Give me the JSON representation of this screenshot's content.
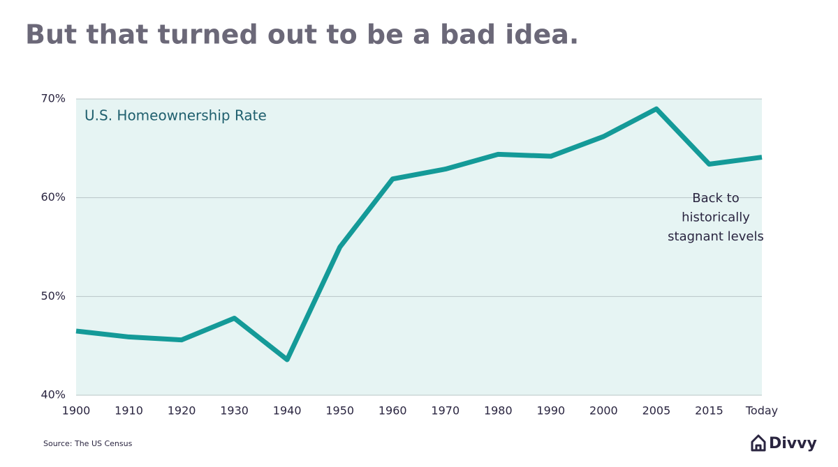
{
  "chart_data": {
    "type": "line",
    "title": "But that turned out to be a bad idea.",
    "subtitle": "U.S. Homeownership Rate",
    "annotation": [
      "Back to",
      "historically",
      "stagnant levels"
    ],
    "source": "Source: The US Census",
    "categories": [
      "1900",
      "1910",
      "1920",
      "1930",
      "1940",
      "1950",
      "1960",
      "1970",
      "1980",
      "1990",
      "2000",
      "2005",
      "2015",
      "Today"
    ],
    "values": [
      46.5,
      45.9,
      45.6,
      47.8,
      43.6,
      55.0,
      61.9,
      62.9,
      64.4,
      64.2,
      66.2,
      69.0,
      63.4,
      64.1
    ],
    "color": "#149a98",
    "plot_background": "#e6f4f3",
    "ylim": [
      40,
      70
    ],
    "yticks": [
      {
        "value": 40,
        "label": "40%"
      },
      {
        "value": 50,
        "label": "50%"
      },
      {
        "value": 60,
        "label": "60%"
      },
      {
        "value": 70,
        "label": "70%"
      }
    ],
    "grid": true
  },
  "brand": "Divvy"
}
